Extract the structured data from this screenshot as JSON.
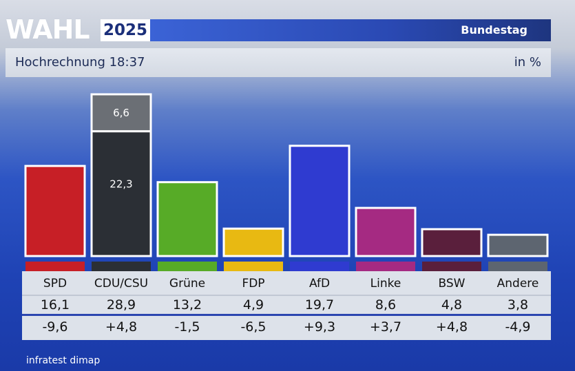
{
  "header": {
    "wordmark": "WAHL",
    "year": "2025",
    "election": "Bundestag"
  },
  "subheader": {
    "title": "Hochrechnung 18:37",
    "unit": "in %"
  },
  "footer": {
    "source": "infratest dimap"
  },
  "colors": {
    "SPD": "#c71f26",
    "CDU/CSU": "#2b2f35",
    "CSU": "#6b6f75",
    "Grüne": "#57ab27",
    "FDP": "#e8b912",
    "AfD": "#2f3bd0",
    "Linke": "#a52a82",
    "BSW": "#5a1f3c",
    "Andere": "#5d6570"
  },
  "chart_data": {
    "type": "bar",
    "categories": [
      "SPD",
      "CDU/CSU",
      "Grüne",
      "FDP",
      "AfD",
      "Linke",
      "BSW",
      "Andere"
    ],
    "values": [
      16.1,
      28.9,
      13.2,
      4.9,
      19.7,
      8.6,
      4.8,
      3.8
    ],
    "changes": [
      "-9,6",
      "+4,8",
      "-1,5",
      "-6,5",
      "+9,3",
      "+3,7",
      "+4,8",
      "-4,9"
    ],
    "value_labels": [
      "16,1",
      "28,9",
      "13,2",
      "4,9",
      "19,7",
      "8,6",
      "4,8",
      "3,8"
    ],
    "stacked_segments": {
      "CDU/CSU": [
        {
          "part": "CDU",
          "value": 22.3,
          "label": "22,3"
        },
        {
          "part": "CSU",
          "value": 6.6,
          "label": "6,6"
        }
      ]
    },
    "unit": "in %",
    "ylim": [
      0,
      30
    ],
    "grid": false,
    "legend": "none"
  }
}
